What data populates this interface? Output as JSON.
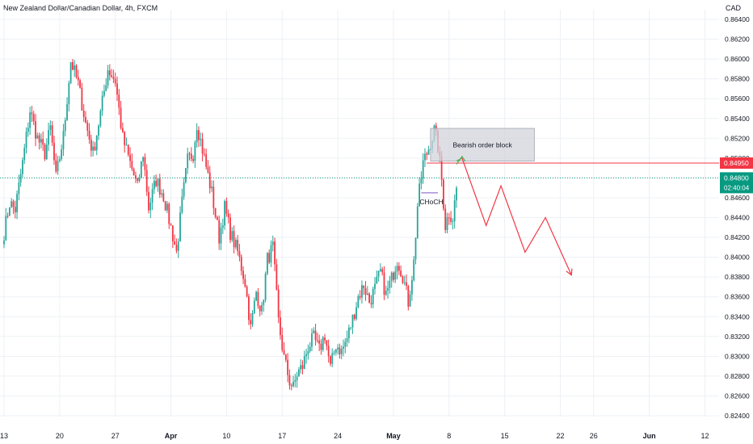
{
  "header": {
    "symbol_title": "New Zealand Dollar/Canadian Dollar, 4h, FXCM",
    "currency": "CAD"
  },
  "colors": {
    "up": "#26a69a",
    "down": "#f23645",
    "grid": "#eef0f4",
    "axis_text": "#131722",
    "current_price_bg": "#089981",
    "level_price_bg": "#f23645",
    "order_block_fill": "#d1d4dc",
    "projection": "#f23645",
    "projection_start": "#4caf50",
    "choch_line": "#7e57c2"
  },
  "chart_data": {
    "type": "candlestick",
    "instrument": "New Zealand Dollar/Canadian Dollar",
    "interval": "4h",
    "source": "FXCM",
    "y_ticks": [
      "0.86400",
      "0.86200",
      "0.86000",
      "0.85800",
      "0.85600",
      "0.85400",
      "0.85200",
      "0.85000",
      "0.84800",
      "0.84600",
      "0.84400",
      "0.84200",
      "0.84000",
      "0.83800",
      "0.83600",
      "0.83400",
      "0.83200",
      "0.83000",
      "0.82800",
      "0.82600",
      "0.82400"
    ],
    "ylim": [
      0.824,
      0.864
    ],
    "x_ticks": [
      {
        "label": "13",
        "bar": 0
      },
      {
        "label": "20",
        "bar": 30
      },
      {
        "label": "27",
        "bar": 60
      },
      {
        "label": "Apr",
        "bar": 90
      },
      {
        "label": "10",
        "bar": 120
      },
      {
        "label": "17",
        "bar": 150
      },
      {
        "label": "24",
        "bar": 180
      },
      {
        "label": "May",
        "bar": 210
      },
      {
        "label": "8",
        "bar": 240
      },
      {
        "label": "15",
        "bar": 270
      },
      {
        "label": "22",
        "bar": 300
      },
      {
        "label": "26",
        "bar": 318
      },
      {
        "label": "Jun",
        "bar": 348
      },
      {
        "label": "12",
        "bar": 378
      }
    ],
    "anchors": [
      [
        0,
        0.8425
      ],
      [
        3,
        0.8455
      ],
      [
        6,
        0.8448
      ],
      [
        10,
        0.8495
      ],
      [
        14,
        0.8548
      ],
      [
        18,
        0.852
      ],
      [
        22,
        0.8505
      ],
      [
        25,
        0.853
      ],
      [
        28,
        0.848
      ],
      [
        32,
        0.8522
      ],
      [
        36,
        0.8598
      ],
      [
        40,
        0.8575
      ],
      [
        44,
        0.8535
      ],
      [
        48,
        0.8505
      ],
      [
        52,
        0.8545
      ],
      [
        56,
        0.859
      ],
      [
        60,
        0.8578
      ],
      [
        64,
        0.852
      ],
      [
        68,
        0.8495
      ],
      [
        72,
        0.847
      ],
      [
        75,
        0.8505
      ],
      [
        78,
        0.845
      ],
      [
        82,
        0.8478
      ],
      [
        86,
        0.8462
      ],
      [
        90,
        0.843
      ],
      [
        93,
        0.8405
      ],
      [
        96,
        0.8455
      ],
      [
        99,
        0.8498
      ],
      [
        102,
        0.8505
      ],
      [
        104,
        0.8535
      ],
      [
        108,
        0.85
      ],
      [
        112,
        0.8465
      ],
      [
        116,
        0.842
      ],
      [
        119,
        0.845
      ],
      [
        122,
        0.8425
      ],
      [
        126,
        0.8405
      ],
      [
        130,
        0.8375
      ],
      [
        133,
        0.8328
      ],
      [
        136,
        0.8365
      ],
      [
        139,
        0.8345
      ],
      [
        142,
        0.8398
      ],
      [
        145,
        0.841
      ],
      [
        148,
        0.8335
      ],
      [
        151,
        0.8298
      ],
      [
        154,
        0.8275
      ],
      [
        156,
        0.8268
      ],
      [
        158,
        0.8282
      ],
      [
        161,
        0.829
      ],
      [
        164,
        0.831
      ],
      [
        167,
        0.8318
      ],
      [
        170,
        0.8306
      ],
      [
        173,
        0.8322
      ],
      [
        176,
        0.8288
      ],
      [
        179,
        0.8312
      ],
      [
        182,
        0.8305
      ],
      [
        185,
        0.8318
      ],
      [
        188,
        0.8338
      ],
      [
        191,
        0.836
      ],
      [
        194,
        0.8372
      ],
      [
        197,
        0.8355
      ],
      [
        200,
        0.8368
      ],
      [
        203,
        0.8385
      ],
      [
        206,
        0.8362
      ],
      [
        209,
        0.8378
      ],
      [
        212,
        0.8398
      ],
      [
        215,
        0.8382
      ],
      [
        218,
        0.8355
      ],
      [
        221,
        0.8395
      ],
      [
        223,
        0.8452
      ],
      [
        226,
        0.8495
      ],
      [
        229,
        0.851
      ],
      [
        232,
        0.8528
      ],
      [
        234,
        0.8512
      ],
      [
        236,
        0.8478
      ],
      [
        238,
        0.8432
      ],
      [
        240,
        0.8445
      ],
      [
        242,
        0.844
      ],
      [
        244,
        0.847
      ]
    ],
    "annotations": {
      "order_block_label": "Bearish order block",
      "order_block_top": 0.853,
      "order_block_bottom": 0.8497,
      "order_block_start_bar": 230,
      "order_block_end_bar": 286,
      "choch_label": "CHoCH",
      "choch_level": 0.8465,
      "choch_start_bar": 225,
      "choch_end_bar": 234,
      "resistance_level": 0.8495,
      "current_level": 0.848,
      "projection_path": [
        [
          244,
          0.8497
        ],
        [
          247,
          0.85
        ],
        [
          260,
          0.8432
        ],
        [
          268,
          0.8472
        ],
        [
          281,
          0.8405
        ],
        [
          292,
          0.844
        ],
        [
          306,
          0.8382
        ]
      ]
    },
    "price_labels": {
      "level": "0.84950",
      "current": "0.84800",
      "countdown": "02:40:04"
    }
  }
}
